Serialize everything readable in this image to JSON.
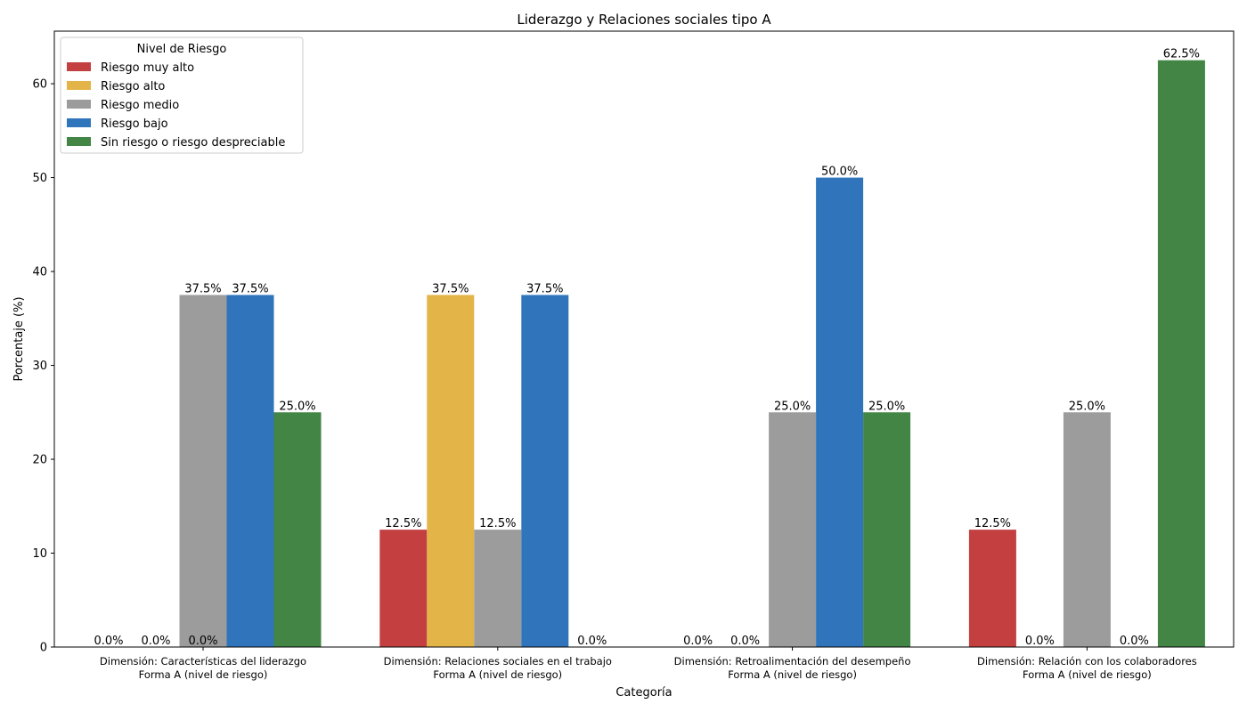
{
  "chart_data": {
    "type": "bar",
    "title": "Liderazgo y Relaciones sociales tipo A",
    "xlabel": "Categoría",
    "ylabel": "Porcentaje (%)",
    "ylim": [
      0,
      65.6
    ],
    "yticks": [
      0,
      10,
      20,
      30,
      40,
      50,
      60
    ],
    "categories": [
      [
        "Dimensión: Características del liderazgo",
        "Forma A (nivel de riesgo)"
      ],
      [
        "Dimensión: Relaciones sociales en el trabajo",
        "Forma A (nivel de riesgo)"
      ],
      [
        "Dimensión: Retroalimentación del desempeño",
        "Forma A (nivel de riesgo)"
      ],
      [
        "Dimensión: Relación con los colaboradores",
        "Forma A (nivel de riesgo)"
      ]
    ],
    "legend": {
      "title": "Nivel de Riesgo",
      "position": "top-left"
    },
    "grid": false,
    "series": [
      {
        "name": "Riesgo muy alto",
        "color": "#c44040",
        "values": [
          0.0,
          12.5,
          0.0,
          12.5
        ],
        "labels": [
          "0.0%",
          "12.5%",
          "0.0%",
          "12.5%"
        ]
      },
      {
        "name": "Riesgo alto",
        "color": "#e3b447",
        "values": [
          0.0,
          37.5,
          0.0,
          0.0
        ],
        "labels": [
          "0.0%",
          "37.5%",
          "0.0%",
          "0.0%"
        ]
      },
      {
        "name": "Riesgo medio",
        "color": "#9c9c9c",
        "values": [
          37.5,
          12.5,
          25.0,
          25.0
        ],
        "labels": [
          "37.5%",
          "12.5%",
          "25.0%",
          "25.0%"
        ]
      },
      {
        "name": "Riesgo bajo",
        "color": "#3075bc",
        "values": [
          37.5,
          37.5,
          50.0,
          0.0
        ],
        "labels": [
          "37.5%",
          "37.5%",
          "50.0%",
          "0.0%"
        ]
      },
      {
        "name": "Sin riesgo o riesgo despreciable",
        "color": "#428545",
        "values": [
          25.0,
          0.0,
          25.0,
          62.5
        ],
        "labels": [
          "25.0%",
          "0.0%",
          "25.0%",
          "62.5%"
        ]
      }
    ],
    "extra_labels": [
      {
        "category": 0,
        "text": "0.0%"
      }
    ]
  }
}
